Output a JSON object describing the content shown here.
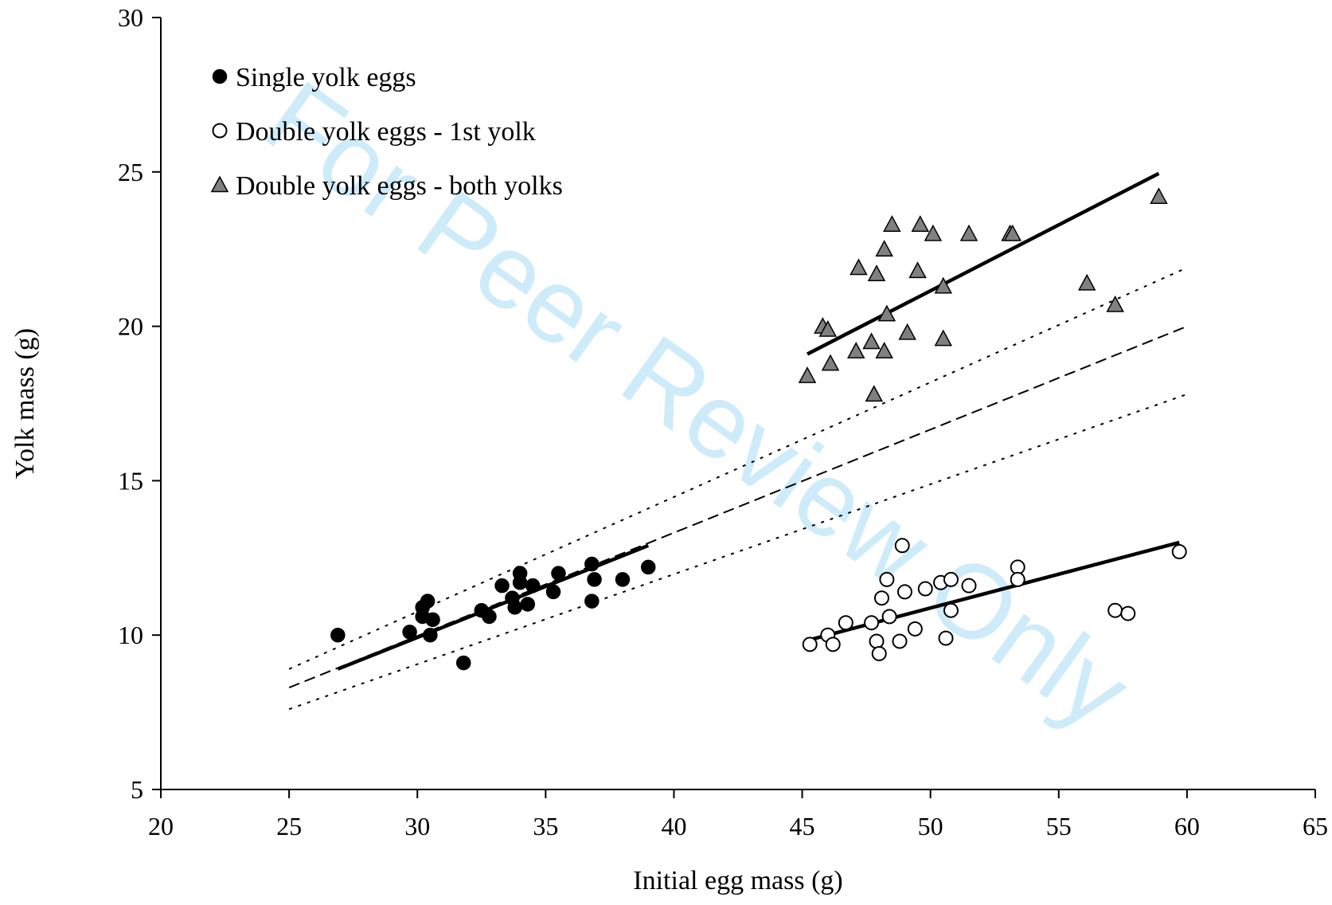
{
  "watermark": "For Peer Review Only",
  "chart_data": {
    "type": "scatter",
    "xlabel": "Initial egg mass (g)",
    "ylabel": "Yolk mass (g)",
    "xlim": [
      20,
      65
    ],
    "ylim": [
      5,
      30
    ],
    "xticks": [
      "20",
      "25",
      "30",
      "35",
      "40",
      "45",
      "50",
      "55",
      "60",
      "65"
    ],
    "yticks": [
      "5",
      "10",
      "15",
      "20",
      "25",
      "30"
    ],
    "grid": false,
    "legend_position": "top-left",
    "series": [
      {
        "name": "Single yolk eggs",
        "marker": "circle-filled",
        "color": "#000000",
        "points": [
          [
            26.9,
            10.0
          ],
          [
            29.7,
            10.1
          ],
          [
            30.2,
            10.9
          ],
          [
            30.2,
            10.6
          ],
          [
            30.4,
            11.1
          ],
          [
            30.5,
            10.0
          ],
          [
            30.6,
            10.5
          ],
          [
            31.8,
            9.1
          ],
          [
            32.5,
            10.8
          ],
          [
            32.8,
            10.6
          ],
          [
            33.3,
            11.6
          ],
          [
            33.7,
            11.2
          ],
          [
            33.8,
            10.9
          ],
          [
            34.0,
            12.0
          ],
          [
            34.0,
            11.7
          ],
          [
            34.3,
            11.0
          ],
          [
            34.5,
            11.6
          ],
          [
            35.3,
            11.4
          ],
          [
            35.5,
            12.0
          ],
          [
            36.8,
            12.3
          ],
          [
            36.8,
            11.1
          ],
          [
            36.9,
            11.8
          ],
          [
            38.0,
            11.8
          ],
          [
            39.0,
            12.2
          ]
        ]
      },
      {
        "name": "Double yolk eggs - 1st yolk",
        "marker": "circle-open",
        "color": "#000000",
        "points": [
          [
            45.3,
            9.7
          ],
          [
            46.0,
            10.0
          ],
          [
            46.2,
            9.7
          ],
          [
            46.7,
            10.4
          ],
          [
            47.7,
            10.4
          ],
          [
            47.9,
            9.8
          ],
          [
            48.0,
            9.4
          ],
          [
            48.1,
            11.2
          ],
          [
            48.3,
            11.8
          ],
          [
            48.4,
            10.6
          ],
          [
            48.8,
            9.8
          ],
          [
            48.9,
            12.9
          ],
          [
            49.0,
            11.4
          ],
          [
            49.4,
            10.2
          ],
          [
            49.8,
            11.5
          ],
          [
            50.4,
            11.7
          ],
          [
            50.6,
            9.9
          ],
          [
            50.8,
            11.8
          ],
          [
            50.8,
            10.8
          ],
          [
            51.5,
            11.6
          ],
          [
            53.4,
            12.2
          ],
          [
            53.4,
            11.8
          ],
          [
            57.2,
            10.8
          ],
          [
            57.7,
            10.7
          ],
          [
            59.7,
            12.7
          ]
        ]
      },
      {
        "name": "Double yolk eggs - both yolks",
        "marker": "triangle",
        "color": "#808080",
        "points": [
          [
            45.2,
            18.4
          ],
          [
            45.8,
            20.0
          ],
          [
            46.0,
            19.9
          ],
          [
            46.1,
            18.8
          ],
          [
            47.1,
            19.2
          ],
          [
            47.2,
            21.9
          ],
          [
            47.7,
            19.5
          ],
          [
            47.8,
            17.8
          ],
          [
            47.9,
            21.7
          ],
          [
            48.2,
            22.5
          ],
          [
            48.2,
            19.2
          ],
          [
            48.3,
            20.4
          ],
          [
            48.5,
            23.3
          ],
          [
            49.1,
            19.8
          ],
          [
            49.5,
            21.8
          ],
          [
            49.6,
            23.3
          ],
          [
            50.1,
            23.0
          ],
          [
            50.5,
            21.3
          ],
          [
            50.5,
            19.6
          ],
          [
            51.5,
            23.0
          ],
          [
            53.1,
            23.0
          ],
          [
            53.2,
            23.0
          ],
          [
            56.1,
            21.4
          ],
          [
            57.2,
            20.7
          ],
          [
            58.9,
            24.2
          ]
        ]
      }
    ],
    "regression_lines": [
      {
        "series": "Single yolk eggs",
        "style": "solid",
        "from": [
          26.9,
          8.9
        ],
        "to": [
          39.0,
          12.9
        ]
      },
      {
        "series": "Double yolk eggs - 1st yolk",
        "style": "solid",
        "from": [
          45.3,
          9.85
        ],
        "to": [
          59.7,
          13.0
        ]
      },
      {
        "series": "Double yolk eggs - both yolks",
        "style": "solid",
        "from": [
          45.2,
          19.1
        ],
        "to": [
          58.9,
          24.95
        ]
      }
    ],
    "reference_lines": [
      {
        "style": "dashed",
        "from": [
          25.0,
          8.3
        ],
        "to": [
          60.0,
          20.0
        ]
      },
      {
        "style": "dotted",
        "from": [
          25.0,
          8.9
        ],
        "to": [
          60.0,
          21.9
        ]
      },
      {
        "style": "dotted",
        "from": [
          25.0,
          7.6
        ],
        "to": [
          60.0,
          17.8
        ]
      }
    ]
  }
}
